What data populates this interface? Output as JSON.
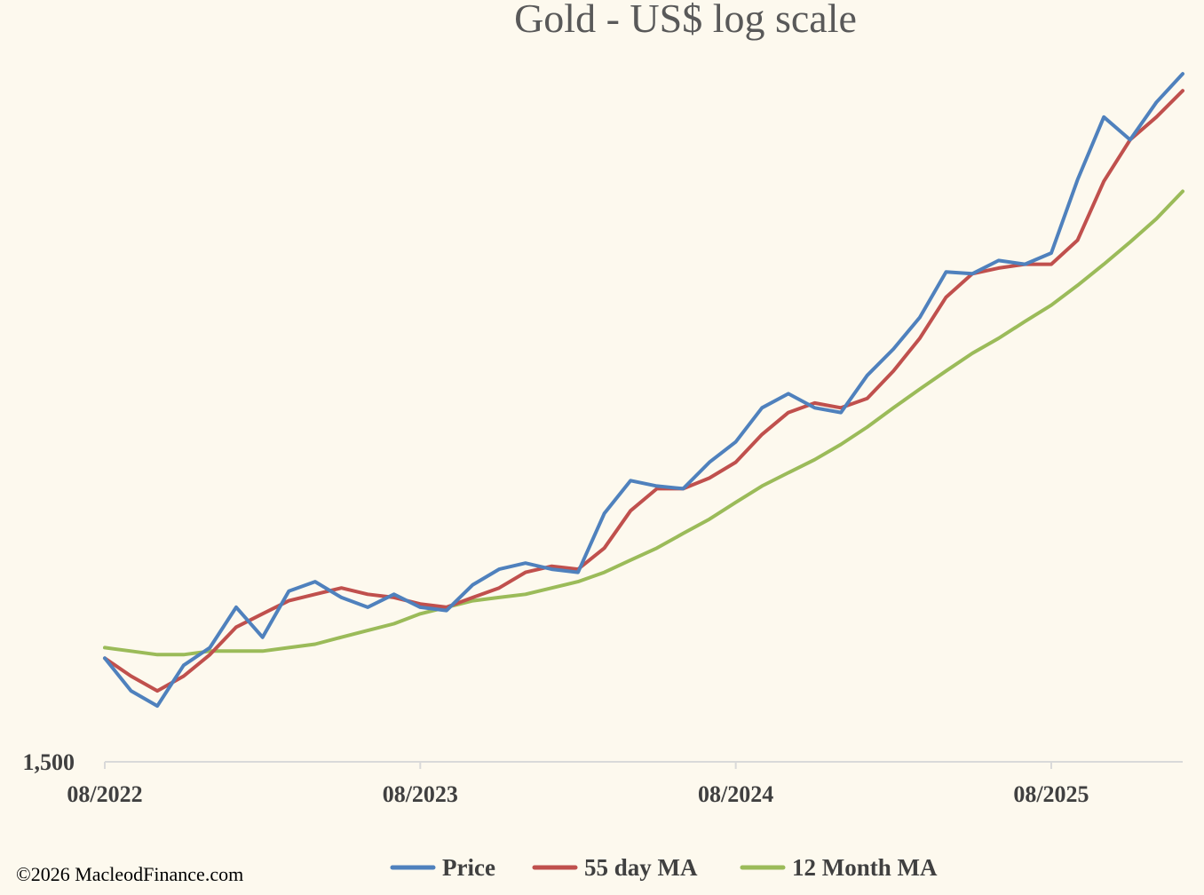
{
  "chart_data": {
    "type": "line",
    "title": "Gold - US$ log scale",
    "yscale": "log",
    "y_tick_labels": [
      "1,500"
    ],
    "y_tick_values": [
      1500
    ],
    "ylim": [
      1500,
      4650
    ],
    "xlim": [
      "2022-08",
      "2026-01"
    ],
    "x_tick_labels": [
      "08/2022",
      "08/2023",
      "08/2024",
      "08/2025"
    ],
    "x_tick_values": [
      "2022-08",
      "2023-08",
      "2024-08",
      "2025-08"
    ],
    "grid": false,
    "legend_position": "bottom",
    "x": [
      "2022-08",
      "2022-09",
      "2022-10",
      "2022-11",
      "2022-12",
      "2023-01",
      "2023-02",
      "2023-03",
      "2023-04",
      "2023-05",
      "2023-06",
      "2023-07",
      "2023-08",
      "2023-09",
      "2023-10",
      "2023-11",
      "2023-12",
      "2024-01",
      "2024-02",
      "2024-03",
      "2024-04",
      "2024-05",
      "2024-06",
      "2024-07",
      "2024-08",
      "2024-09",
      "2024-10",
      "2024-11",
      "2024-12",
      "2025-01",
      "2025-02",
      "2025-03",
      "2025-04",
      "2025-05",
      "2025-06",
      "2025-07",
      "2025-08",
      "2025-09",
      "2025-10",
      "2025-11",
      "2025-12",
      "2026-01"
    ],
    "series": [
      {
        "name": "Price",
        "color": "#4f81bd",
        "values": [
          1770,
          1680,
          1640,
          1750,
          1800,
          1920,
          1830,
          1970,
          2000,
          1950,
          1920,
          1960,
          1920,
          1910,
          1990,
          2040,
          2060,
          2040,
          2030,
          2230,
          2350,
          2330,
          2320,
          2420,
          2500,
          2640,
          2700,
          2640,
          2620,
          2780,
          2900,
          3050,
          3280,
          3270,
          3340,
          3320,
          3380,
          3800,
          4200,
          4050,
          4300,
          4500
        ]
      },
      {
        "name": "55 day MA",
        "color": "#c0504d",
        "values": [
          1770,
          1720,
          1680,
          1720,
          1780,
          1860,
          1900,
          1940,
          1960,
          1980,
          1960,
          1950,
          1930,
          1920,
          1950,
          1980,
          2030,
          2050,
          2040,
          2110,
          2240,
          2320,
          2320,
          2360,
          2420,
          2530,
          2620,
          2660,
          2640,
          2680,
          2800,
          2950,
          3150,
          3270,
          3300,
          3320,
          3320,
          3450,
          3790,
          4050,
          4200,
          4380
        ]
      },
      {
        "name": "12 Month MA",
        "color": "#9bbb59",
        "values": [
          1800,
          1790,
          1780,
          1780,
          1790,
          1790,
          1790,
          1800,
          1810,
          1830,
          1850,
          1870,
          1900,
          1920,
          1940,
          1950,
          1960,
          1980,
          2000,
          2030,
          2070,
          2110,
          2160,
          2210,
          2270,
          2330,
          2380,
          2430,
          2490,
          2560,
          2640,
          2720,
          2800,
          2880,
          2950,
          3030,
          3110,
          3210,
          3320,
          3440,
          3570,
          3730
        ]
      }
    ]
  },
  "copyright": "©2026 MacleodFinance.com"
}
